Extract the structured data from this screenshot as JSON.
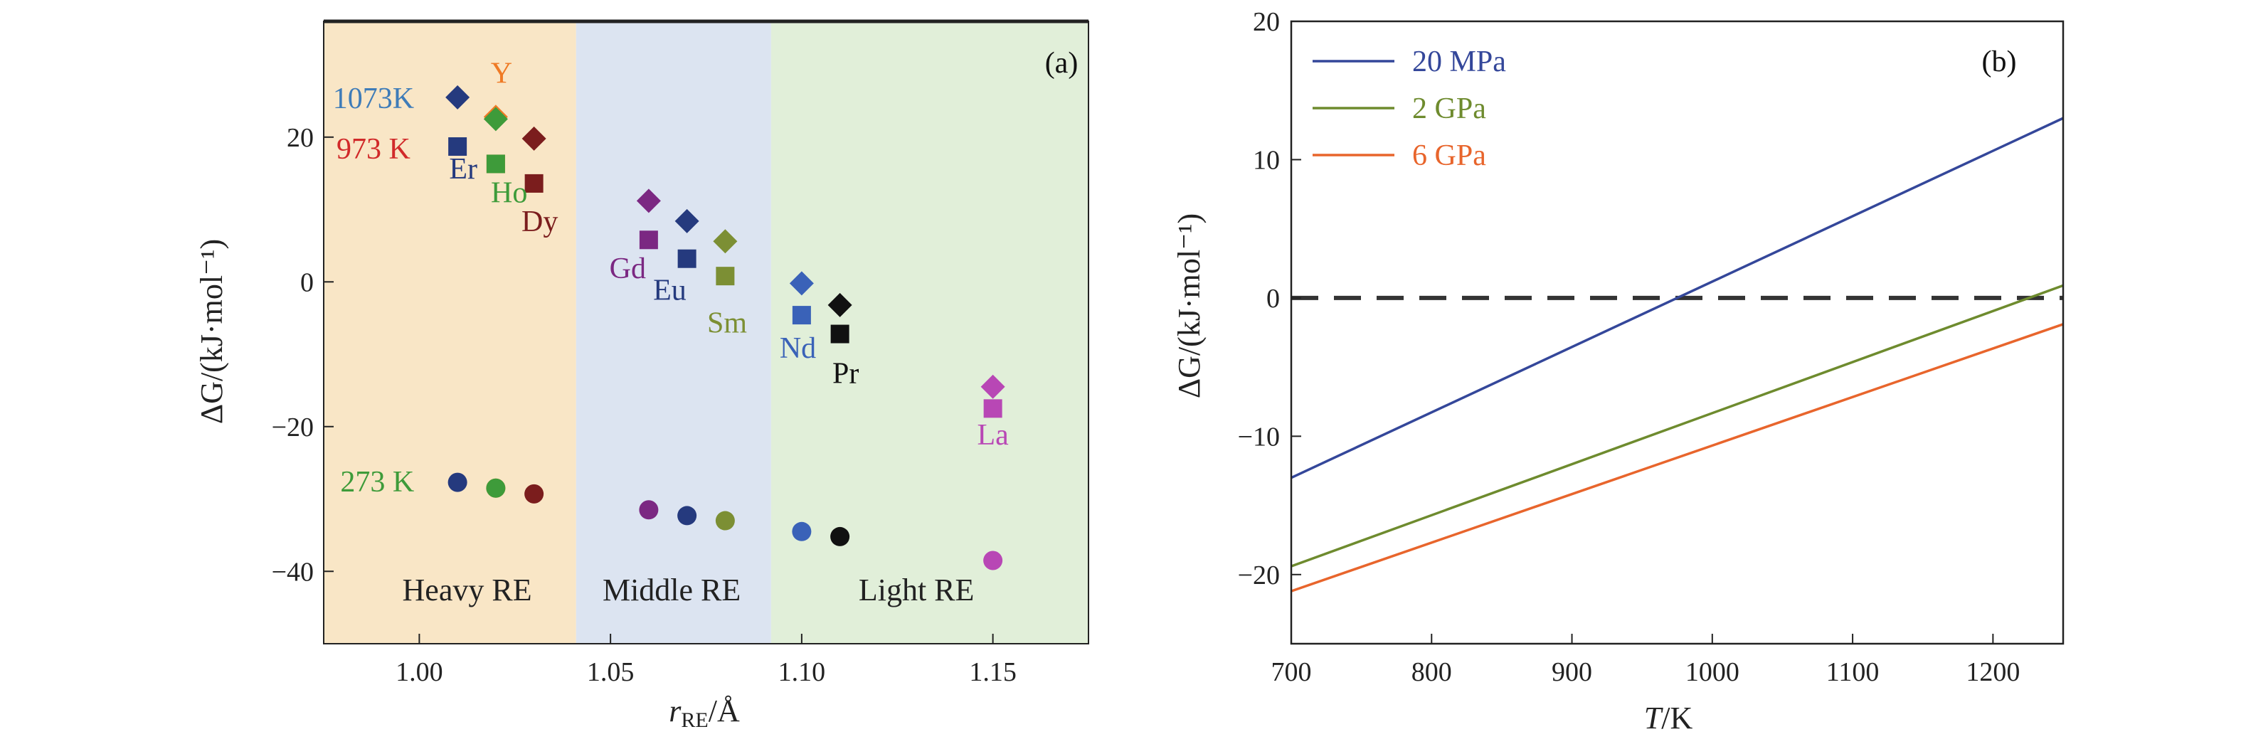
{
  "figure": {
    "colors": {
      "heavy_bg": "#F9E6C6",
      "middle_bg": "#DCE4F1",
      "light_bg": "#E1EFD9",
      "axis": "#222222"
    }
  },
  "chart_data": [
    {
      "type": "scatter",
      "panel_label": "(a)",
      "xlabel": "r_RE/Å",
      "xlabel_main": "r",
      "xlabel_sub": "RE",
      "xlabel_unit": "/Å",
      "ylabel": "ΔG/(kJ·mol⁻¹)",
      "xlim": [
        0.975,
        1.175
      ],
      "ylim": [
        -50,
        36
      ],
      "xticks": [
        1.0,
        1.05,
        1.1,
        1.15
      ],
      "xtick_labels": [
        "1.00",
        "1.05",
        "1.10",
        "1.15"
      ],
      "yticks": [
        -40,
        -20,
        0,
        20
      ],
      "ytick_labels": [
        "−40",
        "−20",
        "0",
        "20"
      ],
      "regions": [
        {
          "name": "Heavy RE",
          "x_range": [
            0.975,
            1.041
          ],
          "color": "#F9E6C6",
          "label_x": 1.0125,
          "label_y": -44
        },
        {
          "name": "Middle RE",
          "x_range": [
            1.041,
            1.092
          ],
          "color": "#DCE4F1",
          "label_x": 1.066,
          "label_y": -44
        },
        {
          "name": "Light RE",
          "x_range": [
            1.092,
            1.175
          ],
          "color": "#E1EFD9",
          "label_x": 1.13,
          "label_y": -44
        }
      ],
      "temperature_labels": [
        {
          "text": "1073K",
          "color": "#3F7CB8",
          "x": 0.988,
          "y": 25.5
        },
        {
          "text": "973 K",
          "color": "#D12A2A",
          "x": 0.988,
          "y": 18.5
        },
        {
          "text": "273 K",
          "color": "#3E9B3A",
          "x": 0.989,
          "y": -27.5
        }
      ],
      "elements": [
        {
          "name": "Er",
          "color": "#253A7E",
          "r": 1.01,
          "dG_1073": 25.5,
          "dG_973": 18.7,
          "dG_273": -27.7,
          "label_x": 1.0115,
          "label_y": 14.3
        },
        {
          "name": "Y",
          "color": "#EF7A25",
          "r": 1.02,
          "dG_1073": 22.8,
          "dG_973": 16.3,
          "dG_273": -28.5,
          "label_x": 1.0215,
          "label_y": 27.5
        },
        {
          "name": "Ho",
          "color": "#3E9B3A",
          "r": 1.02,
          "dG_1073": 22.5,
          "dG_973": 16.3,
          "dG_273": -28.5,
          "label_x": 1.0235,
          "label_y": 11.0
        },
        {
          "name": "Dy",
          "color": "#7B1D1D",
          "r": 1.03,
          "dG_1073": 19.8,
          "dG_973": 13.6,
          "dG_273": -29.3,
          "label_x": 1.0315,
          "label_y": 7.0
        },
        {
          "name": "Gd",
          "color": "#7B2882",
          "r": 1.06,
          "dG_1073": 11.2,
          "dG_973": 5.8,
          "dG_273": -31.5,
          "label_x": 1.0545,
          "label_y": 0.5
        },
        {
          "name": "Eu",
          "color": "#253A7E",
          "r": 1.07,
          "dG_1073": 8.4,
          "dG_973": 3.2,
          "dG_273": -32.3,
          "label_x": 1.0655,
          "label_y": -2.5
        },
        {
          "name": "Sm",
          "color": "#7C8F34",
          "r": 1.08,
          "dG_1073": 5.6,
          "dG_973": 0.8,
          "dG_273": -33.0,
          "label_x": 1.0805,
          "label_y": -7.0
        },
        {
          "name": "Nd",
          "color": "#3A62B8",
          "r": 1.1,
          "dG_1073": -0.2,
          "dG_973": -4.6,
          "dG_273": -34.5,
          "label_x": 1.099,
          "label_y": -10.5
        },
        {
          "name": "Pr",
          "color": "#111111",
          "r": 1.11,
          "dG_1073": -3.2,
          "dG_973": -7.2,
          "dG_273": -35.2,
          "label_x": 1.1115,
          "label_y": -14.0
        },
        {
          "name": "La",
          "color": "#B847B5",
          "r": 1.15,
          "dG_1073": -14.5,
          "dG_973": -17.5,
          "dG_273": -38.5,
          "label_x": 1.15,
          "label_y": -22.5
        }
      ]
    },
    {
      "type": "line",
      "panel_label": "(b)",
      "xlabel": "T/K",
      "xlabel_main": "T",
      "xlabel_unit": "/K",
      "ylabel": "ΔG/(kJ·mol⁻¹)",
      "xlim": [
        700,
        1250
      ],
      "ylim": [
        -25,
        20
      ],
      "xticks": [
        700,
        800,
        900,
        1000,
        1100,
        1200
      ],
      "xtick_labels": [
        "700",
        "800",
        "900",
        "1000",
        "1100",
        "1200"
      ],
      "yticks": [
        -20,
        -10,
        0,
        10,
        20
      ],
      "ytick_labels": [
        "−20",
        "−10",
        "0",
        "10",
        "20"
      ],
      "reference_line": {
        "y": 0,
        "style": "dashed",
        "color": "#333333"
      },
      "legend_position": "top-left",
      "series": [
        {
          "name": "20 MPa",
          "color": "#34479A",
          "x": [
            700,
            1250
          ],
          "y": [
            -13.0,
            13.0
          ]
        },
        {
          "name": "2 GPa",
          "color": "#6E8B2E",
          "x": [
            700,
            1250
          ],
          "y": [
            -19.4,
            0.9
          ]
        },
        {
          "name": "6 GPa",
          "color": "#E8652C",
          "x": [
            700,
            1250
          ],
          "y": [
            -21.2,
            -1.9
          ]
        }
      ]
    }
  ]
}
